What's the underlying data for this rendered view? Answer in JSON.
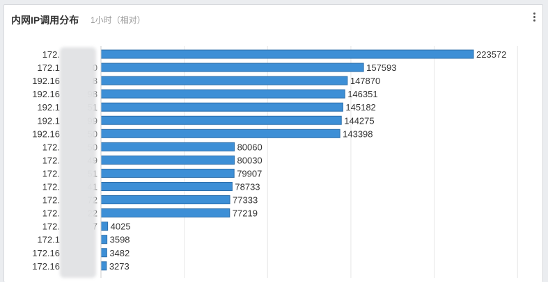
{
  "panel": {
    "title": "内网IP调用分布",
    "subtitle": "1小时（相对）",
    "menu_icon": "more-vertical-icon"
  },
  "colors": {
    "bar_fill": "#3d8fd6",
    "bar_stroke": "#2d6fab",
    "grid": "#e6e6e6"
  },
  "chart_data": {
    "type": "bar",
    "orientation": "horizontal",
    "title": "",
    "xlabel": "",
    "ylabel": "",
    "grid": true,
    "xlim": [
      0,
      250000
    ],
    "categories": [
      "172.",
      "172.1",
      "192.16",
      "192.16",
      "192.1",
      "192.1",
      "192.16",
      "172.",
      "172.",
      "172.",
      "172.",
      "172.",
      "172.",
      "172.",
      "172.1",
      "172.16",
      "172.16"
    ],
    "categories_suffix": [
      "",
      "0",
      "8",
      "98",
      "51",
      "99",
      "50",
      "50",
      "49",
      "51",
      "41",
      "72",
      "22",
      "7",
      "",
      "",
      ""
    ],
    "values": [
      223572,
      157593,
      147870,
      146351,
      145182,
      144275,
      143398,
      80060,
      80030,
      79907,
      78733,
      77333,
      77219,
      4025,
      3598,
      3482,
      3273
    ]
  }
}
